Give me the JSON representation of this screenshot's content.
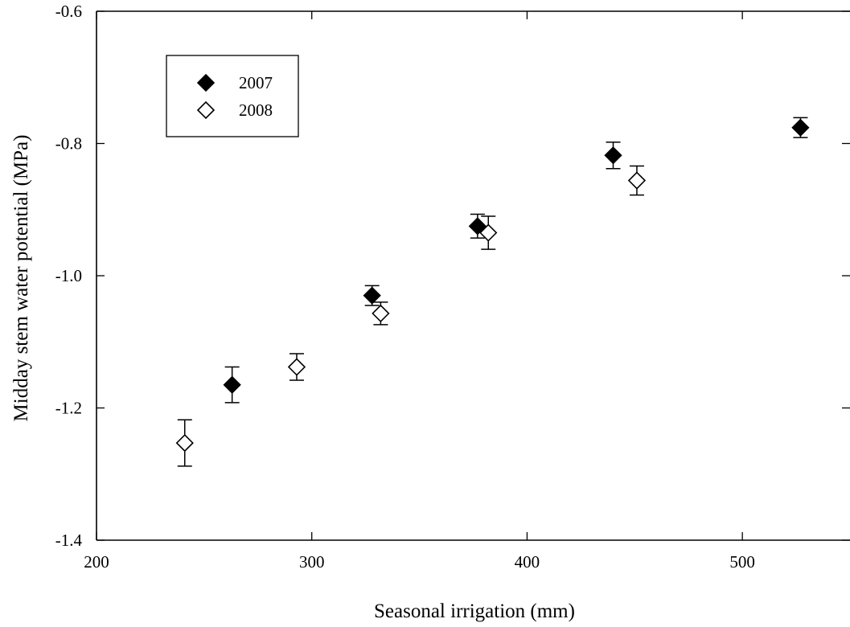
{
  "chart_data": {
    "type": "scatter",
    "xlabel": "Seasonal irrigation (mm)",
    "ylabel": "Midday stem water potential (MPa)",
    "xlim": [
      200,
      550
    ],
    "ylim": [
      -1.4,
      -0.6
    ],
    "x_ticks": [
      200,
      300,
      400,
      500
    ],
    "y_ticks": [
      -1.4,
      -1.2,
      -1.0,
      -0.8,
      -0.6
    ],
    "x_tick_labels": [
      "200",
      "300",
      "400",
      "500"
    ],
    "y_tick_labels": [
      "-1.4",
      "-1.2",
      "-1.0",
      "-0.8",
      "-0.6"
    ],
    "grid": false,
    "legend_position": "top-left",
    "series": [
      {
        "name": "2007",
        "marker": "filled-diamond",
        "color": "#000000",
        "points": [
          {
            "x": 263,
            "y": -1.165,
            "err": 0.027
          },
          {
            "x": 328,
            "y": -1.03,
            "err": 0.015
          },
          {
            "x": 377,
            "y": -0.925,
            "err": 0.018
          },
          {
            "x": 440,
            "y": -0.818,
            "err": 0.02
          },
          {
            "x": 527,
            "y": -0.776,
            "err": 0.015
          }
        ]
      },
      {
        "name": "2008",
        "marker": "open-diamond",
        "color": "#000000",
        "points": [
          {
            "x": 241,
            "y": -1.253,
            "err": 0.035
          },
          {
            "x": 293,
            "y": -1.138,
            "err": 0.02
          },
          {
            "x": 332,
            "y": -1.057,
            "err": 0.017
          },
          {
            "x": 382,
            "y": -0.935,
            "err": 0.025
          },
          {
            "x": 451,
            "y": -0.856,
            "err": 0.022
          }
        ]
      }
    ]
  }
}
